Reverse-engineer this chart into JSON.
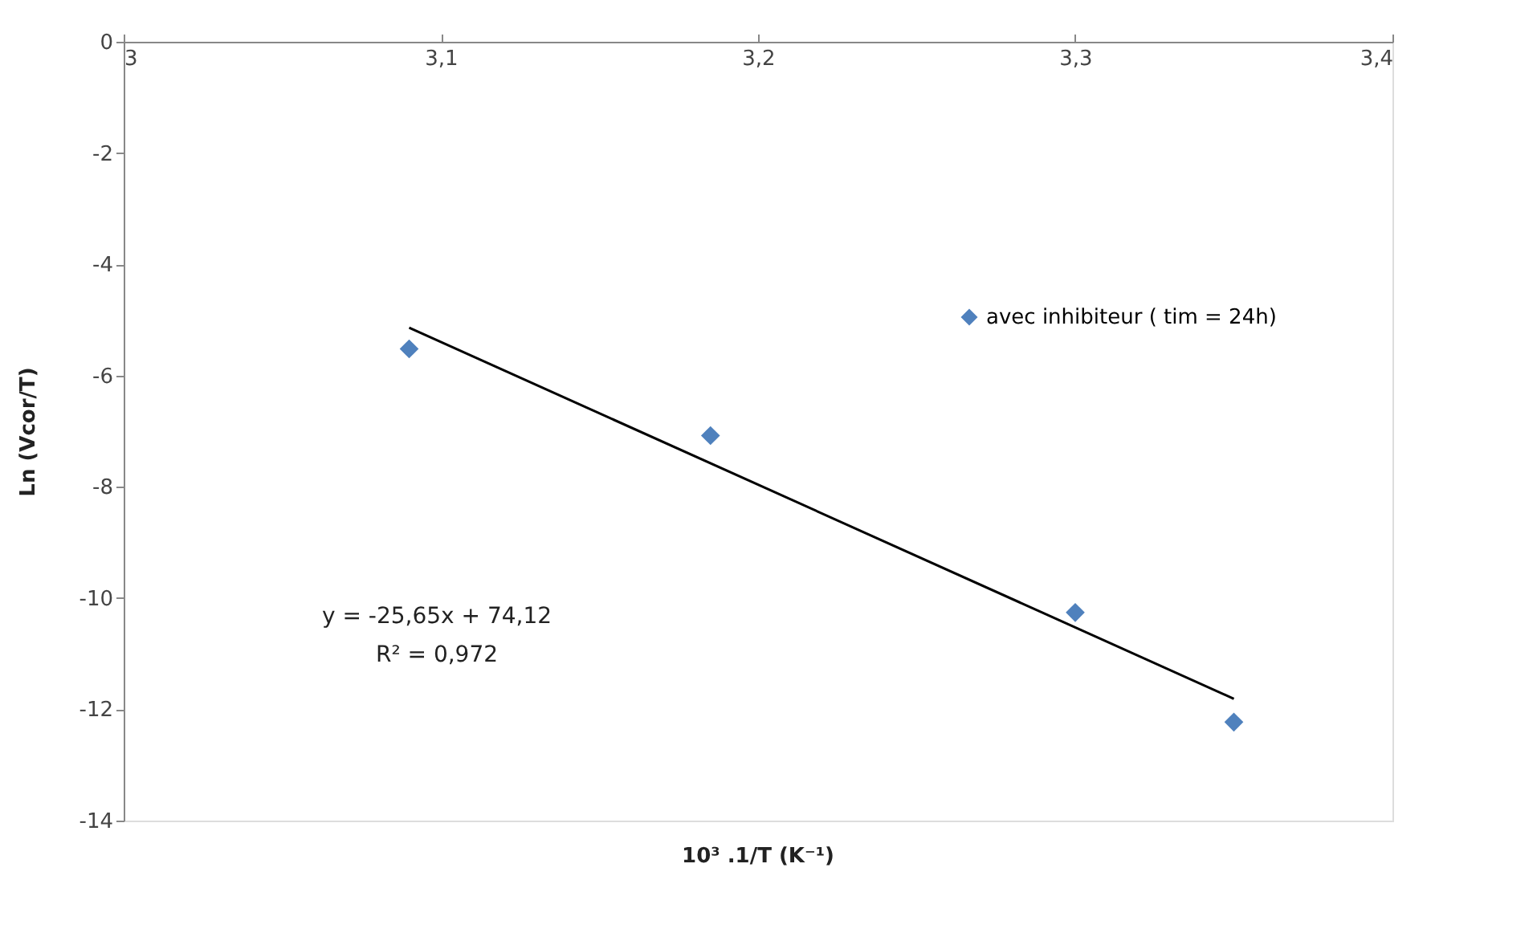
{
  "chart_data": {
    "type": "scatter",
    "xlabel": "10³ .1/T (K⁻¹)",
    "ylabel": "Ln (Vcor/T)",
    "xlim": [
      3,
      3.4
    ],
    "xticks": [
      3,
      {
        "value": 3.1,
        "label": "3,1"
      },
      {
        "value": 3.2,
        "label": "3,2"
      },
      {
        "value": 3.3,
        "label": "3,3"
      },
      {
        "value": 3.4,
        "label": "3,4"
      }
    ],
    "ylim": [
      -14,
      0
    ],
    "yticks": [
      0,
      -2,
      -4,
      -6,
      -8,
      -10,
      -12,
      -14
    ],
    "series": [
      {
        "name": "avec inhibiteur ( tim = 24h)",
        "color": "#4f81bd",
        "x": [
          3.09,
          3.185,
          3.3,
          3.35
        ],
        "values": [
          -5.52,
          -7.08,
          -10.26,
          -12.23
        ]
      },
      {
        "type": "line",
        "marker": "none",
        "color": "#000000",
        "x": [
          3.09,
          3.35
        ],
        "values": [
          -5.14,
          -11.81
        ]
      }
    ],
    "annotations": [
      "y = -25,65x + 74,12",
      "R² = 0,972"
    ],
    "marker": "diamond",
    "grid": false,
    "legend": "top right"
  }
}
